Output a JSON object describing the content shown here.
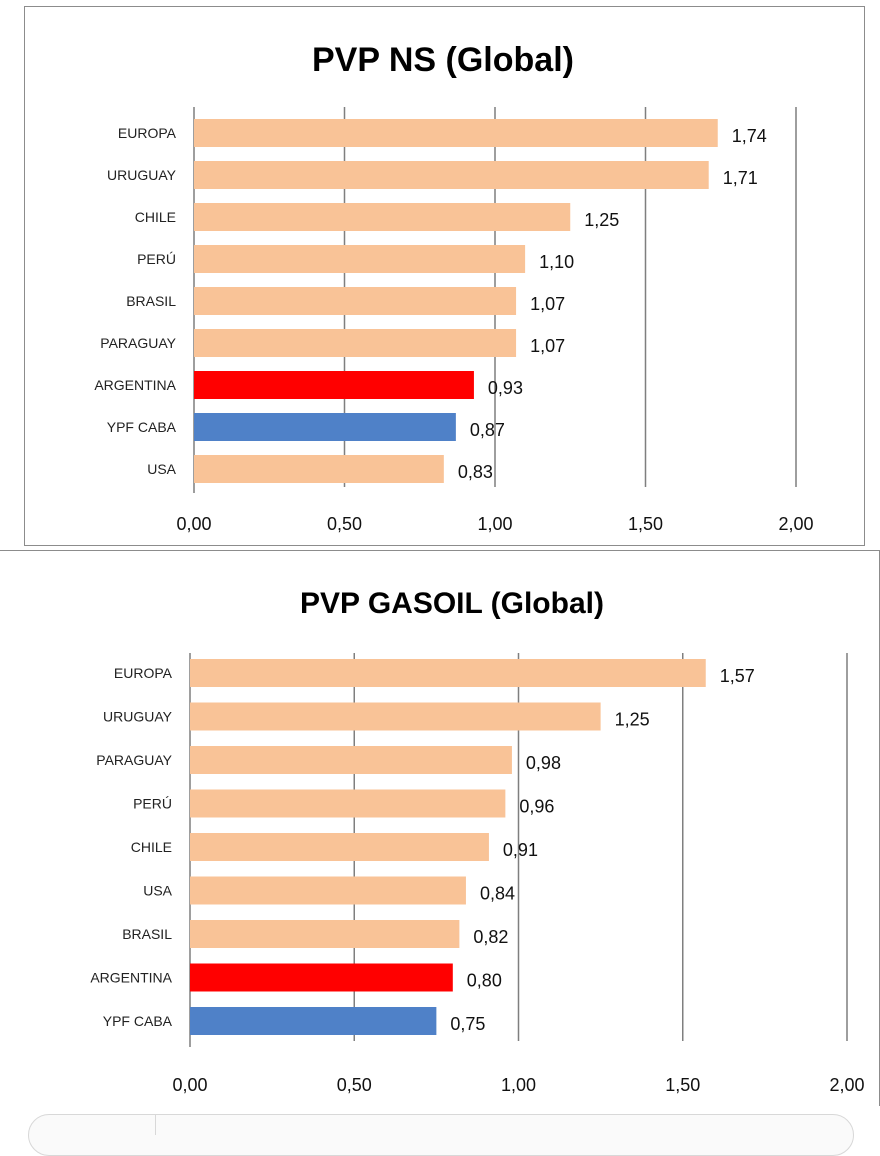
{
  "chart_data": [
    {
      "type": "bar",
      "orientation": "horizontal",
      "title": "PVP NS (Global)",
      "categories": [
        "EUROPA",
        "URUGUAY",
        "CHILE",
        "PERÚ",
        "BRASIL",
        "PARAGUAY",
        "ARGENTINA",
        "YPF CABA",
        "USA"
      ],
      "values": [
        1.74,
        1.71,
        1.25,
        1.1,
        1.07,
        1.07,
        0.93,
        0.87,
        0.83
      ],
      "value_labels": [
        "1,74",
        "1,71",
        "1,25",
        "1,10",
        "1,07",
        "1,07",
        "0,93",
        "0,87",
        "0,83"
      ],
      "bar_colors": [
        "#f9c397",
        "#f9c397",
        "#f9c397",
        "#f9c397",
        "#f9c397",
        "#f9c397",
        "#ff0000",
        "#4f81c8",
        "#f9c397"
      ],
      "xlim": [
        0,
        2
      ],
      "xticks": [
        0,
        0.5,
        1,
        1.5,
        2
      ],
      "xtick_labels": [
        "0,00",
        "0,50",
        "1,00",
        "1,50",
        "2,00"
      ],
      "grid": "vertical",
      "xlabel": "",
      "ylabel": ""
    },
    {
      "type": "bar",
      "orientation": "horizontal",
      "title": "PVP GASOIL (Global)",
      "categories": [
        "EUROPA",
        "URUGUAY",
        "PARAGUAY",
        "PERÚ",
        "CHILE",
        "USA",
        "BRASIL",
        "ARGENTINA",
        "YPF CABA"
      ],
      "values": [
        1.57,
        1.25,
        0.98,
        0.96,
        0.91,
        0.84,
        0.82,
        0.8,
        0.75
      ],
      "value_labels": [
        "1,57",
        "1,25",
        "0,98",
        "0,96",
        "0,91",
        "0,84",
        "0,82",
        "0,80",
        "0,75"
      ],
      "bar_colors": [
        "#f9c397",
        "#f9c397",
        "#f9c397",
        "#f9c397",
        "#f9c397",
        "#f9c397",
        "#f9c397",
        "#ff0000",
        "#4f81c8"
      ],
      "xlim": [
        0,
        2
      ],
      "xticks": [
        0,
        0.5,
        1,
        1.5,
        2
      ],
      "xtick_labels": [
        "0,00",
        "0,50",
        "1,00",
        "1,50",
        "2,00"
      ],
      "grid": "vertical",
      "xlabel": "",
      "ylabel": ""
    }
  ]
}
